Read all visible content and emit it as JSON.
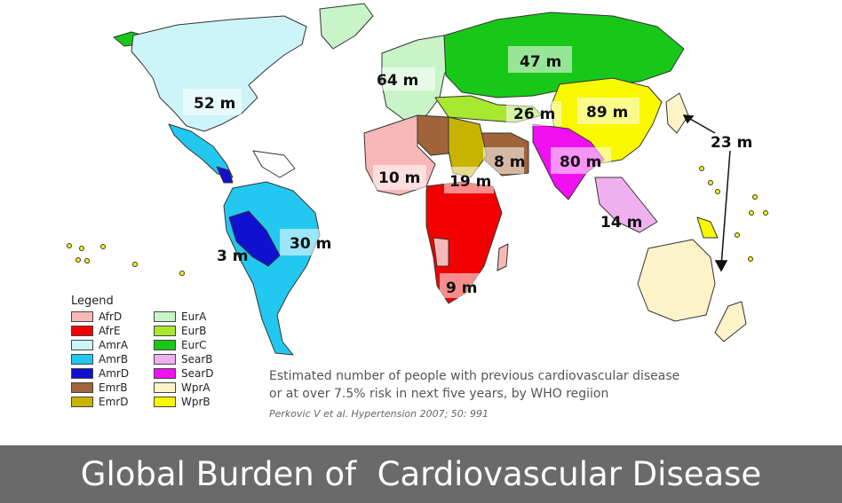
{
  "legend": {
    "title": "Legend",
    "items": [
      {
        "code": "AfrD",
        "color": "#f9b8b8"
      },
      {
        "code": "AfrE",
        "color": "#f20000"
      },
      {
        "code": "AmrA",
        "color": "#cdf4f8"
      },
      {
        "code": "AmrB",
        "color": "#22c8f0"
      },
      {
        "code": "AmrD",
        "color": "#1010d0"
      },
      {
        "code": "EmrB",
        "color": "#a0643a"
      },
      {
        "code": "EmrD",
        "color": "#c8b400"
      },
      {
        "code": "EurA",
        "color": "#c8f4c8"
      },
      {
        "code": "EurB",
        "color": "#a8e830"
      },
      {
        "code": "EurC",
        "color": "#18c818"
      },
      {
        "code": "SearB",
        "color": "#f0b0f0"
      },
      {
        "code": "SearD",
        "color": "#f010f0"
      },
      {
        "code": "WprA",
        "color": "#fcf4c8"
      },
      {
        "code": "WprB",
        "color": "#f8f800"
      }
    ]
  },
  "map_labels": {
    "amr_a": "52 m",
    "eur_c": "47 m",
    "eur_a": "64 m",
    "eur_b": "26 m",
    "wpr_b": "89 m",
    "wpr_a": "23 m",
    "sear_d": "80 m",
    "emr_b": "8 m",
    "afr_d": "10 m",
    "afr_e_north": "19 m",
    "afr_e_south": "9 m",
    "sear_b": "14 m",
    "amr_b": "30 m",
    "amr_d": "3 m"
  },
  "caption": {
    "line1": "Estimated number of people with previous cardiovascular disease",
    "line2": "or at over 7.5% risk in next five years, by WHO regiion"
  },
  "citation": "Perkovic V et al. Hypertension 2007; 50: 991",
  "footer": {
    "title": "Global Burden of  Cardiovascular Disease"
  }
}
